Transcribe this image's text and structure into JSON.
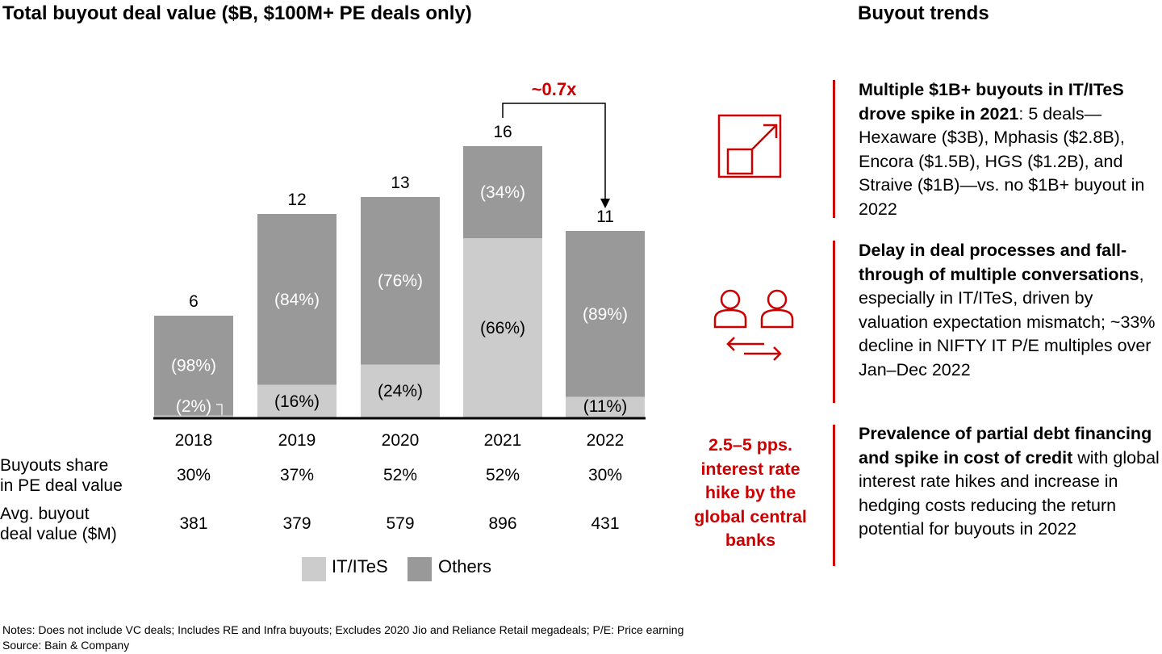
{
  "title": "Total buyout deal value ($B, $100M+ PE deals only)",
  "chart_data": {
    "type": "bar",
    "stacked": true,
    "categories": [
      "2018",
      "2019",
      "2020",
      "2021",
      "2022"
    ],
    "totals": [
      6,
      12,
      13,
      16,
      11
    ],
    "total_labels": [
      "6",
      "12",
      "13",
      "16",
      "11"
    ],
    "ylim": [
      0,
      16
    ],
    "series": [
      {
        "name": "IT/ITeS",
        "color": "#cccccc",
        "share_labels": [
          "(2%)",
          "(16%)",
          "(24%)",
          "(66%)",
          "(11%)"
        ],
        "shares": [
          0.02,
          0.16,
          0.24,
          0.66,
          0.11
        ]
      },
      {
        "name": "Others",
        "color": "#999999",
        "share_labels": [
          "(98%)",
          "(84%)",
          "(76%)",
          "(34%)",
          "(89%)"
        ],
        "shares": [
          0.98,
          0.84,
          0.76,
          0.34,
          0.89
        ]
      }
    ],
    "annotation": {
      "text": "~0.7x",
      "from": "2021",
      "to": "2022"
    }
  },
  "table": {
    "rows": [
      {
        "label_lines": [
          "Buyouts share",
          "in PE deal value"
        ],
        "values": [
          "30%",
          "37%",
          "52%",
          "52%",
          "30%"
        ]
      },
      {
        "label_lines": [
          "Avg. buyout",
          "deal value ($M)"
        ],
        "values": [
          "381",
          "379",
          "579",
          "896",
          "431"
        ]
      }
    ]
  },
  "legend": {
    "items": [
      {
        "label": "IT/ITeS",
        "color": "#cccccc"
      },
      {
        "label": "Others",
        "color": "#999999"
      }
    ]
  },
  "trends": {
    "title": "Buyout trends",
    "items": [
      {
        "bold": "Multiple $1B+ buyouts in IT/ITeS drove spike in 2021",
        "text": ": 5 deals—Hexaware ($3B), Mphasis ($2.8B), Encora ($1.5B), HGS ($1.2B), and Straive ($1B)—vs. no $1B+ buyout in 2022",
        "icon": "growth-chart-icon"
      },
      {
        "bold": "Delay in deal processes and fall-through of multiple conversations",
        "text": ", especially in IT/ITeS, driven by valuation expectation mismatch; ~33% decline in NIFTY IT P/E multiples over Jan–Dec 2022",
        "icon": "two-people-exchange-icon"
      },
      {
        "bold": "Prevalence of partial debt financing and spike in cost of credit",
        "text": " with global interest rate hikes and increase in hedging costs reducing the return potential for buyouts in 2022",
        "icon": ""
      }
    ],
    "rate_callout_lines": [
      "2.5–5 pps.",
      "interest rate",
      "hike by the",
      "global central",
      "banks"
    ]
  },
  "notes": "Notes: Does not include VC deals; Includes RE and Infra buyouts; Excludes 2020 Jio and Reliance Retail megadeals; P/E: Price earning",
  "source": "Source: Bain & Company",
  "accent_color": "#cc0000"
}
